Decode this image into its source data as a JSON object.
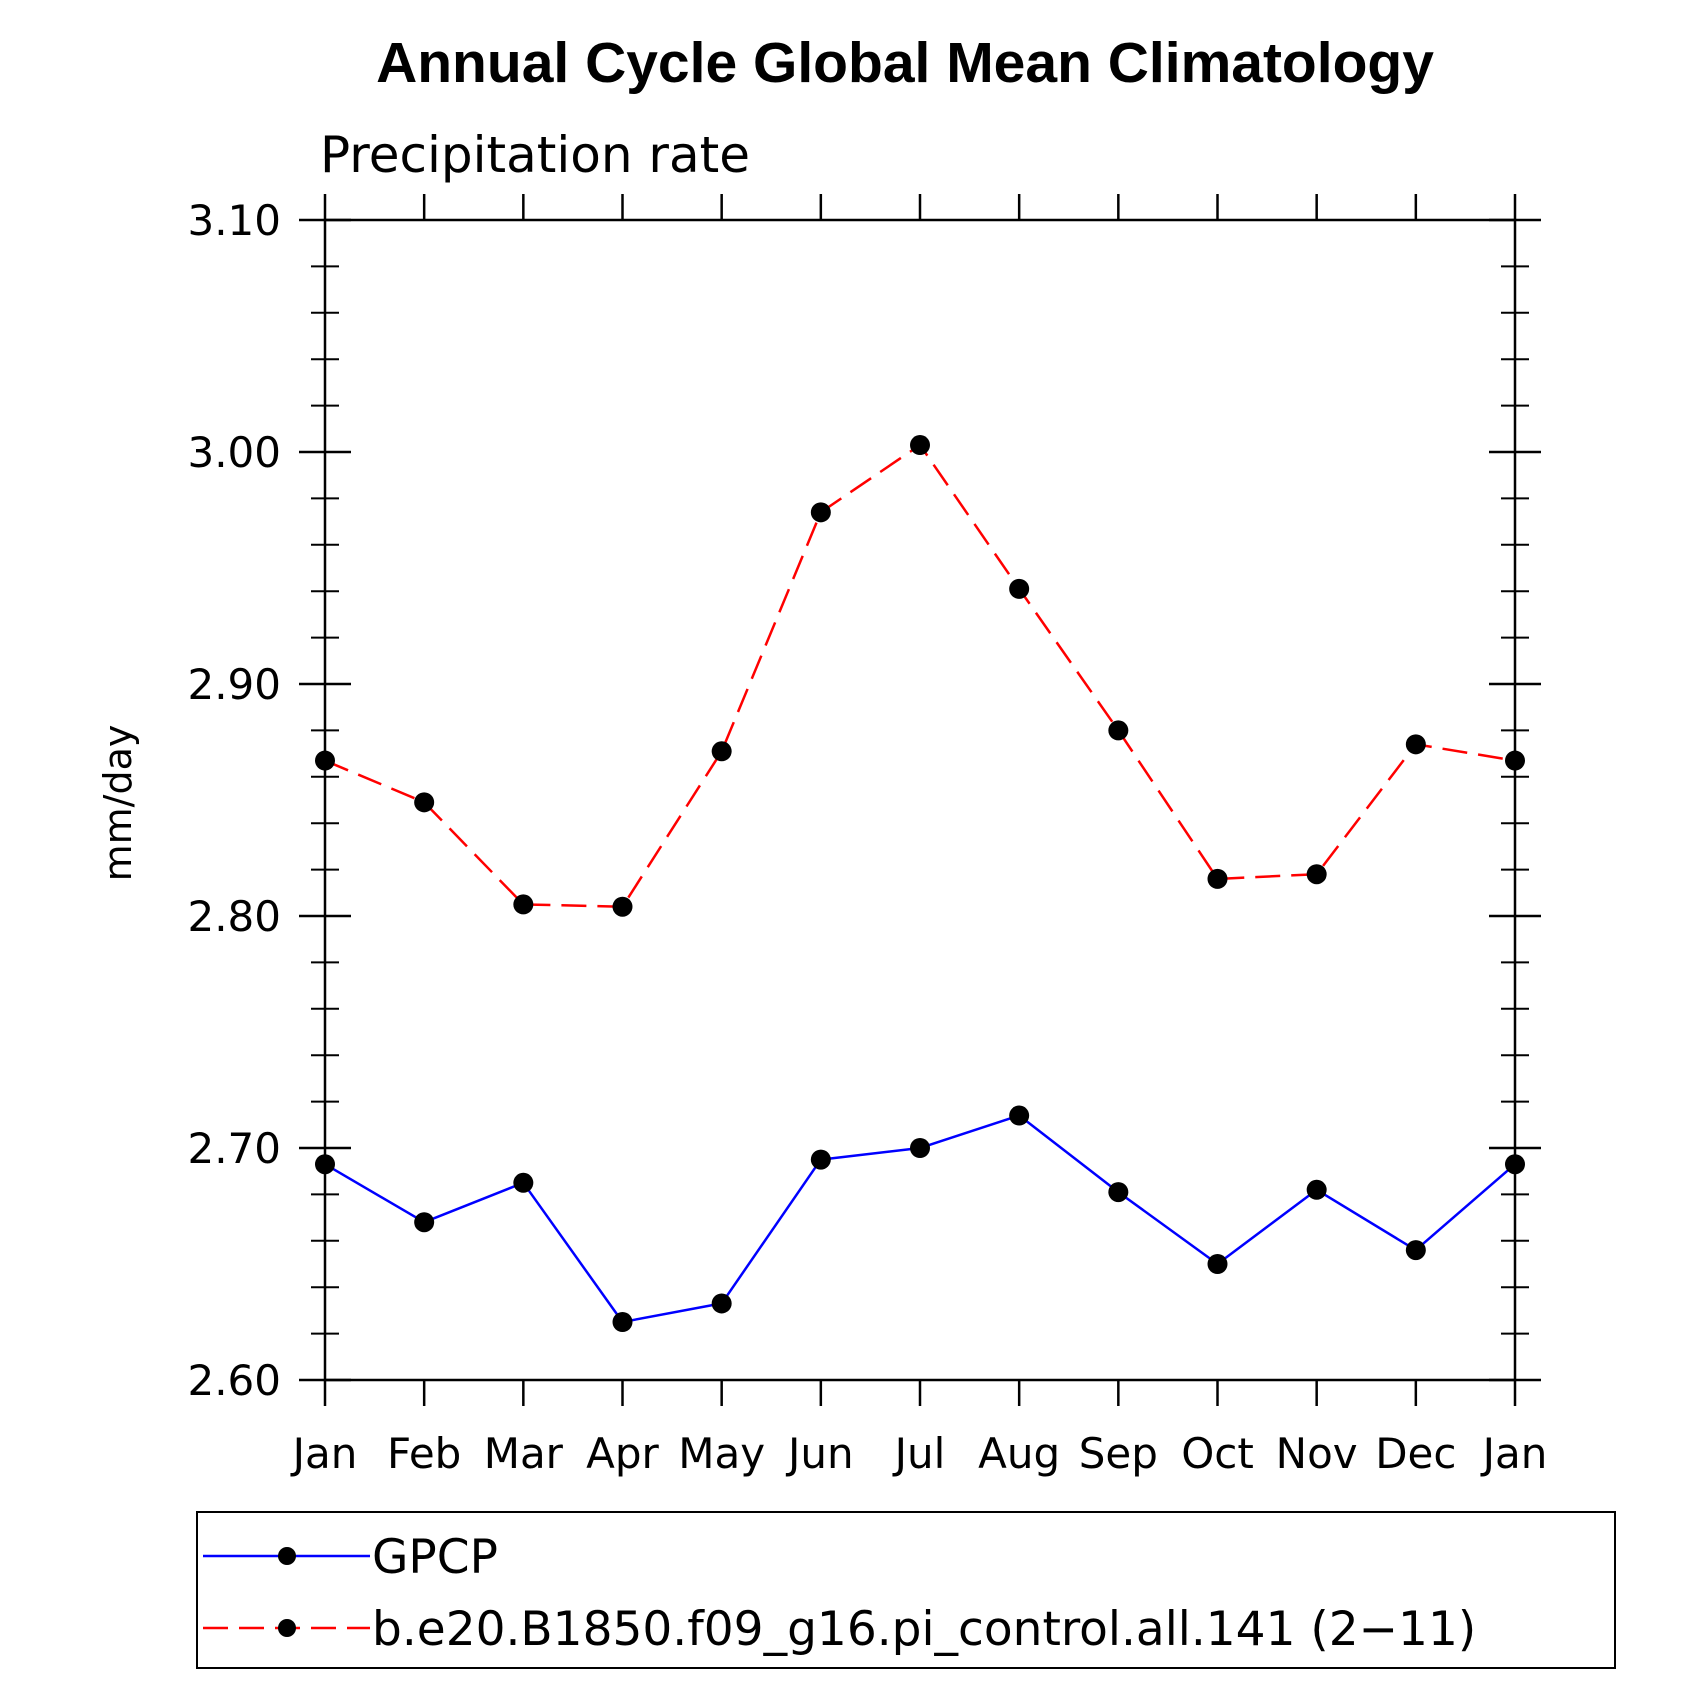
{
  "chart_data": {
    "type": "line",
    "title": "Annual Cycle Global Mean Climatology",
    "subtitle": "Precipitation rate",
    "xlabel": "",
    "ylabel": "mm/day",
    "categories": [
      "Jan",
      "Feb",
      "Mar",
      "Apr",
      "May",
      "Jun",
      "Jul",
      "Aug",
      "Sep",
      "Oct",
      "Nov",
      "Dec",
      "Jan"
    ],
    "ylim": [
      2.6,
      3.1
    ],
    "yticks": [
      2.6,
      2.7,
      2.8,
      2.9,
      3.0,
      3.1
    ],
    "ytick_labels": [
      "2.60",
      "2.70",
      "2.80",
      "2.90",
      "3.00",
      "3.10"
    ],
    "grid": false,
    "legend_position": "bottom",
    "series": [
      {
        "name": "GPCP",
        "color": "#0000ff",
        "dash": "solid",
        "marker": "circle",
        "values": [
          2.693,
          2.668,
          2.685,
          2.625,
          2.633,
          2.695,
          2.7,
          2.714,
          2.681,
          2.65,
          2.682,
          2.656,
          2.693
        ]
      },
      {
        "name": "b.e20.B1850.f09_g16.pi_control.all.141 (2−11)",
        "color": "#ff0000",
        "dash": "dashed",
        "marker": "circle",
        "values": [
          2.867,
          2.849,
          2.805,
          2.804,
          2.871,
          2.974,
          3.003,
          2.941,
          2.88,
          2.816,
          2.818,
          2.874,
          2.867
        ]
      }
    ]
  }
}
